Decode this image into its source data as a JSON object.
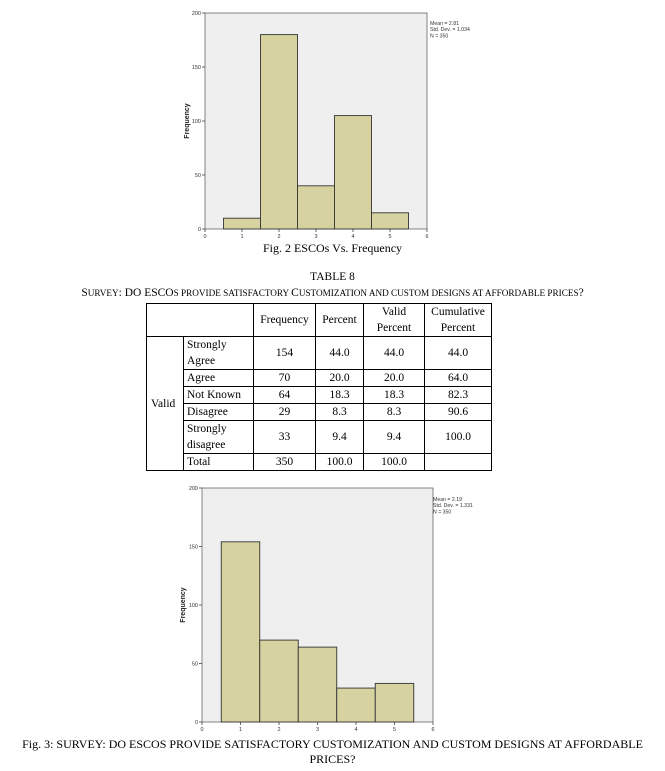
{
  "figures": [
    {
      "caption": "Fig. 2 ESCOs Vs. Frequency",
      "stats": [
        "Mean = 2.81",
        "Std. Dev. = 1.034",
        "N = 350"
      ],
      "chart_data": {
        "type": "bar",
        "x": [
          1,
          2,
          3,
          4,
          5
        ],
        "values": [
          10,
          180,
          40,
          105,
          15
        ],
        "xlim": [
          0,
          6
        ],
        "ylim": [
          0,
          200
        ],
        "xticks": [
          "0",
          "1",
          "2",
          "3",
          "4",
          "5",
          "6"
        ],
        "yticks": [
          "0",
          "50",
          "100",
          "150",
          "200"
        ],
        "ylabel": "Frequency",
        "bar_color": "#d6d3a0",
        "background": "#efefef"
      }
    },
    {
      "caption": "Fig. 3: SURVEY: DO ESCOS PROVIDE SATISFACTORY CUSTOMIZATION AND CUSTOM DESIGNS AT AFFORDABLE PRICES?",
      "stats": [
        "Mean = 2.19",
        "Std. Dev. = 1.331",
        "N = 350"
      ],
      "chart_data": {
        "type": "bar",
        "x": [
          1,
          2,
          3,
          4,
          5
        ],
        "values": [
          154,
          70,
          64,
          29,
          33
        ],
        "xlim": [
          0,
          6
        ],
        "ylim": [
          0,
          200
        ],
        "xticks": [
          "0",
          "1",
          "2",
          "3",
          "4",
          "5",
          "6"
        ],
        "yticks": [
          "0",
          "50",
          "100",
          "150",
          "200"
        ],
        "ylabel": "Frequency",
        "bar_color": "#d6d3a0",
        "background": "#efefef"
      }
    }
  ],
  "table": {
    "number": "TABLE 8",
    "title_parts": [
      {
        "t": "S",
        "s": false
      },
      {
        "t": "URVEY",
        "s": true
      },
      {
        "t": ": D",
        "s": false
      },
      {
        "t": "O",
        "s": false
      },
      {
        "t": " ESCO",
        "s": false
      },
      {
        "t": "S",
        "s": true
      },
      {
        "t": " PROVIDE SATISFACTORY ",
        "s": true
      },
      {
        "t": "C",
        "s": false
      },
      {
        "t": "USTOMIZATION AND CUSTOM DESIGNS AT AFFORDABLE PRICES",
        "s": true
      },
      {
        "t": "?",
        "s": false
      }
    ],
    "headers": [
      "Frequency",
      "Percent",
      "Valid Percent",
      "Cumulative Percent"
    ],
    "group_label": "Valid",
    "rows": [
      {
        "label": "Strongly Agree",
        "frequency": "154",
        "percent": "44.0",
        "valid_percent": "44.0",
        "cumulative": "44.0"
      },
      {
        "label": "Agree",
        "frequency": "70",
        "percent": "20.0",
        "valid_percent": "20.0",
        "cumulative": "64.0"
      },
      {
        "label": "Not Known",
        "frequency": "64",
        "percent": "18.3",
        "valid_percent": "18.3",
        "cumulative": "82.3"
      },
      {
        "label": "Disagree",
        "frequency": "29",
        "percent": "8.3",
        "valid_percent": "8.3",
        "cumulative": "90.6"
      },
      {
        "label": "Strongly disagree",
        "frequency": "33",
        "percent": "9.4",
        "valid_percent": "9.4",
        "cumulative": "100.0"
      },
      {
        "label": "Total",
        "frequency": "350",
        "percent": "100.0",
        "valid_percent": "100.0",
        "cumulative": ""
      }
    ]
  }
}
